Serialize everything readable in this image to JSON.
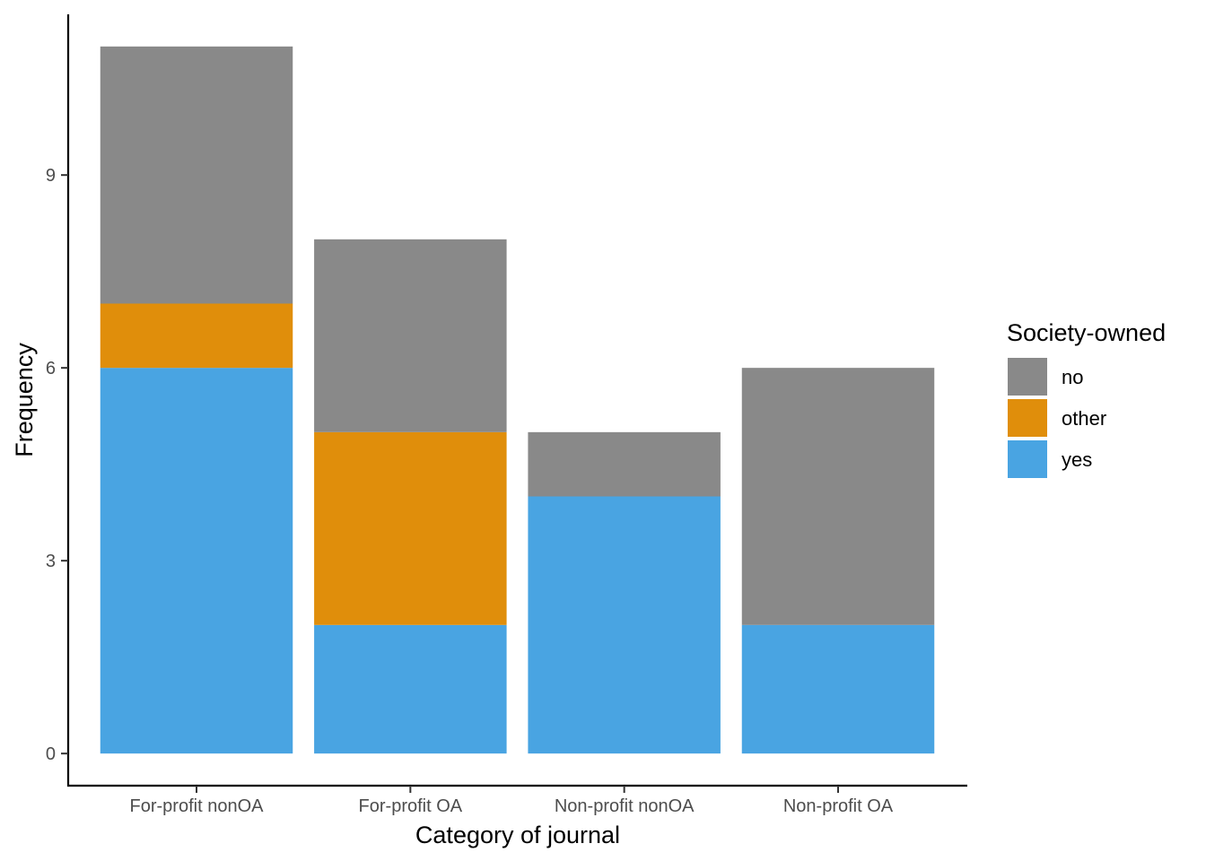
{
  "chart_data": {
    "type": "bar",
    "stacked": true,
    "categories": [
      "For-profit nonOA",
      "For-profit OA",
      "Non-profit nonOA",
      "Non-profit OA"
    ],
    "series": [
      {
        "name": "yes",
        "color": "#49A4E2",
        "values": [
          6,
          2,
          4,
          2
        ]
      },
      {
        "name": "other",
        "color": "#E08E0B",
        "values": [
          1,
          3,
          0,
          0
        ]
      },
      {
        "name": "no",
        "color": "#898989",
        "values": [
          4,
          3,
          1,
          4
        ]
      }
    ],
    "xlabel": "Category of journal",
    "ylabel": "Frequency",
    "yticks": [
      0,
      3,
      6,
      9
    ],
    "ylim": [
      -0.5,
      11.5
    ],
    "grid": false,
    "legend": {
      "title": "Society-owned",
      "position": "right",
      "entries": [
        "no",
        "other",
        "yes"
      ]
    }
  }
}
